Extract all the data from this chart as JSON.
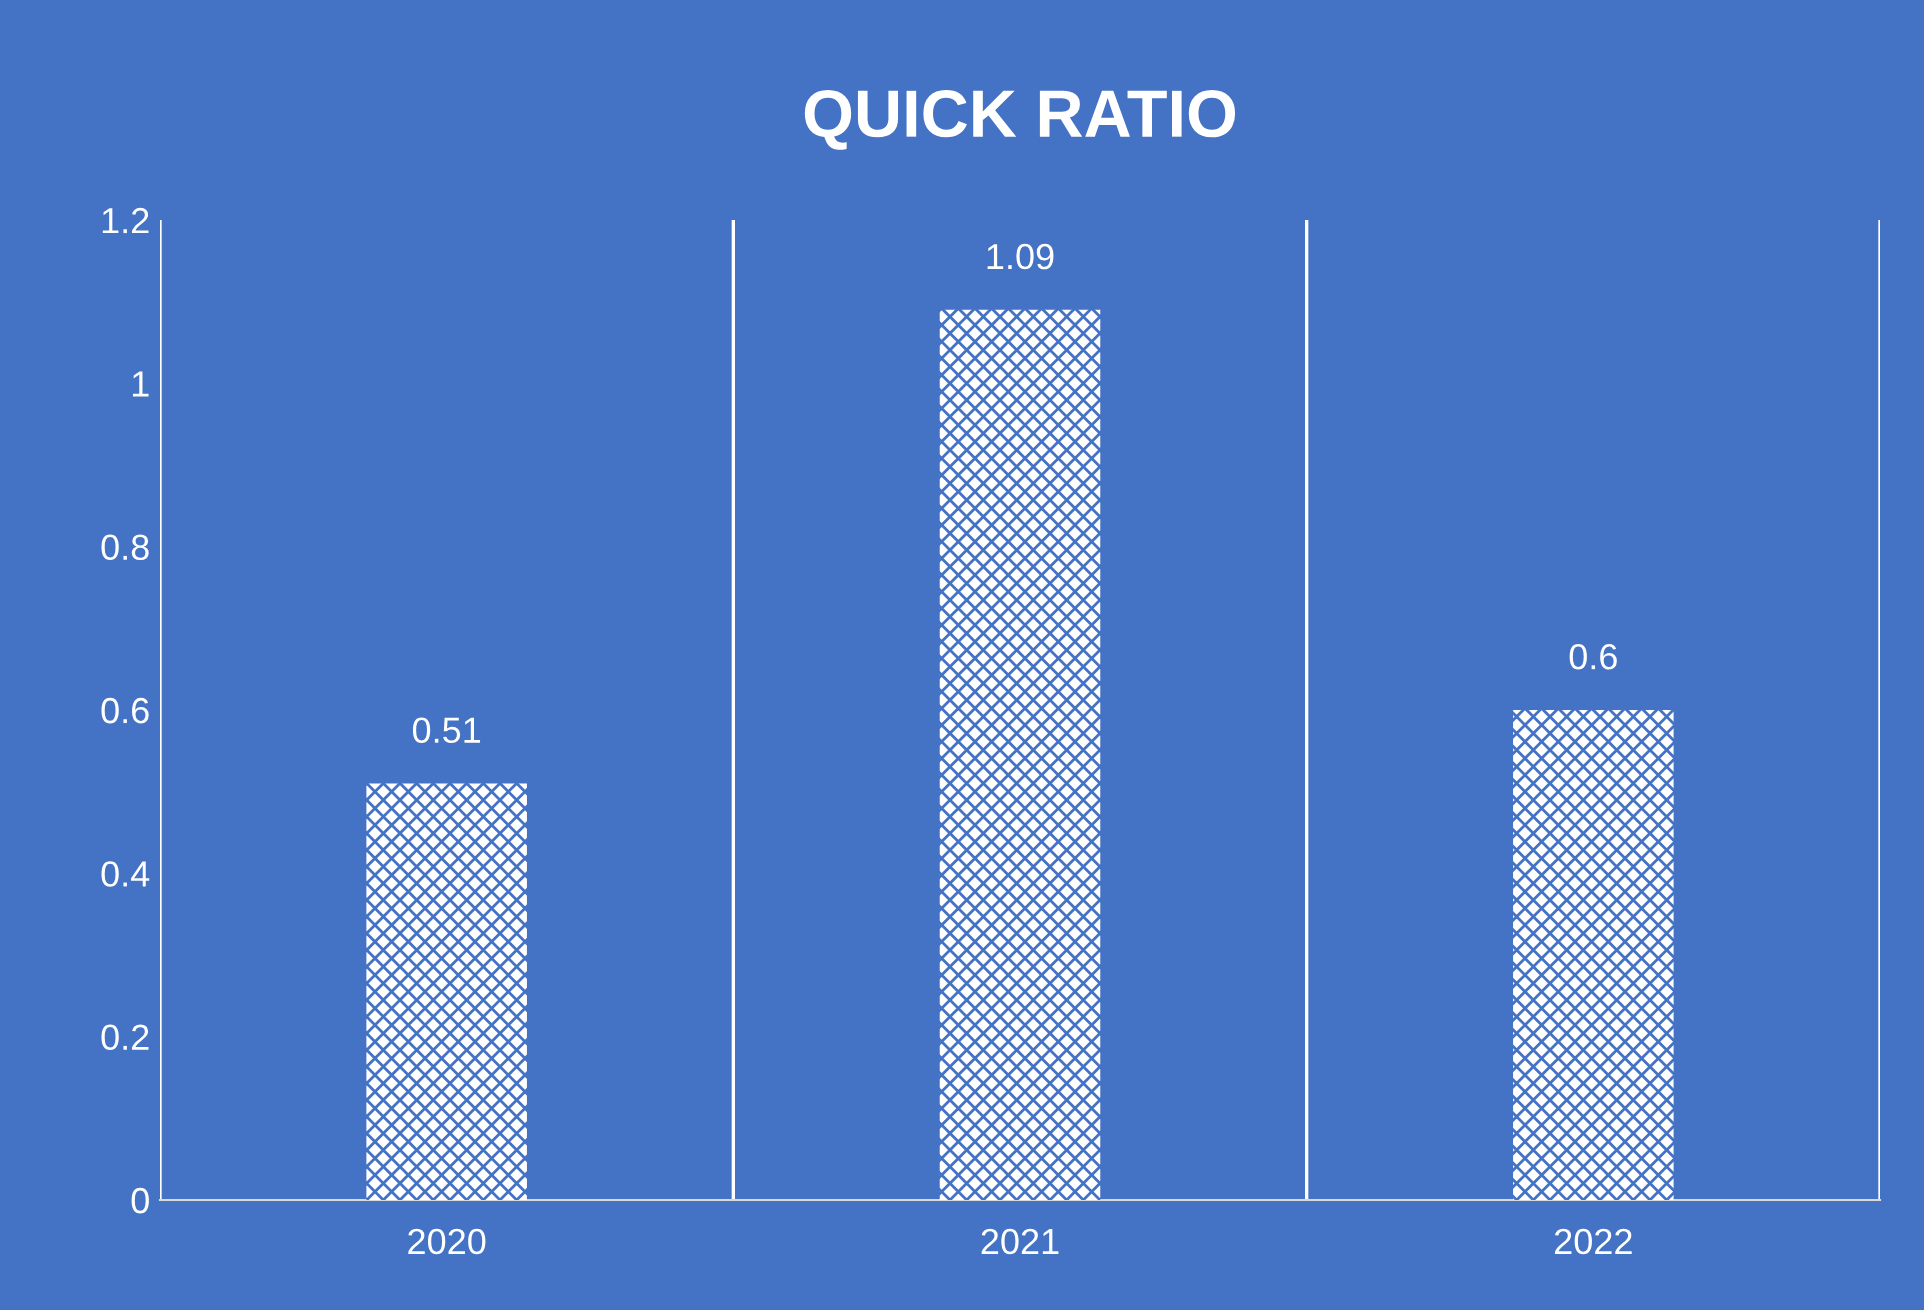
{
  "chart_data": {
    "type": "bar",
    "title": "QUICK RATIO",
    "categories": [
      "2020",
      "2021",
      "2022"
    ],
    "values": [
      0.51,
      1.09,
      0.6
    ],
    "color": "#ffffff",
    "ylim": [
      0,
      1.2
    ],
    "yticks": [
      0,
      0.2,
      0.4,
      0.6,
      0.8,
      1,
      1.2
    ],
    "grid": "x",
    "data_labels": true
  }
}
